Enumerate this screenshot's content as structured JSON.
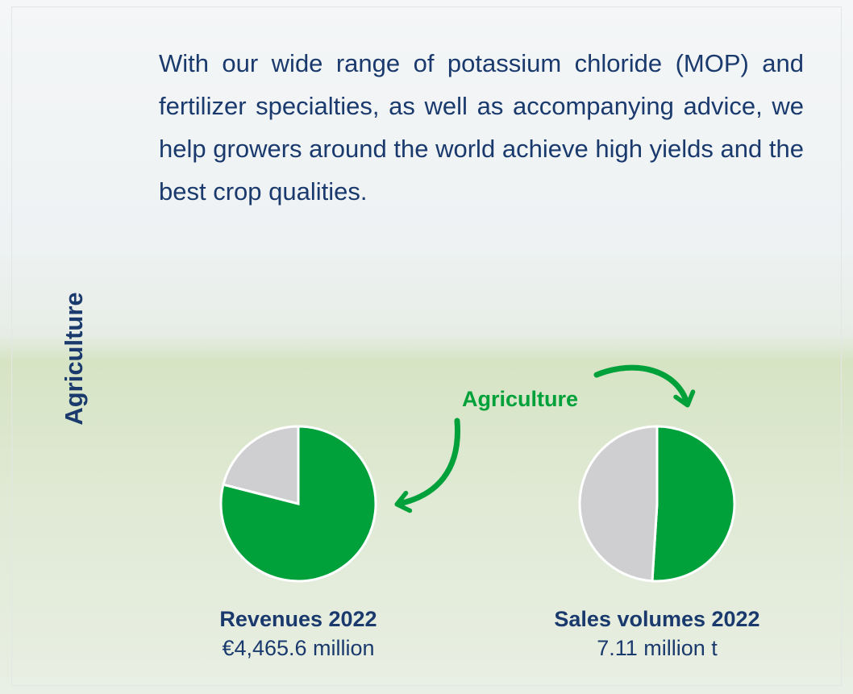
{
  "side_title": "Agriculture",
  "intro": "With our wide range of potassium chloride (MOP) and fertilizer specialties, as well as accompanying advice, we help growers around the world achieve high yields and the best crop qualities.",
  "annotation": "Agriculture",
  "chart_data": [
    {
      "type": "pie",
      "title": "Revenues 2022",
      "subtitle": "€4,465.6 million",
      "values": [
        79,
        21
      ],
      "colors": [
        "#00a13a",
        "#cfcfd1"
      ]
    },
    {
      "type": "pie",
      "title": "Sales volumes 2022",
      "subtitle": "7.11 million t",
      "values": [
        51,
        49
      ],
      "colors": [
        "#00a13a",
        "#cfcfd1"
      ]
    }
  ]
}
